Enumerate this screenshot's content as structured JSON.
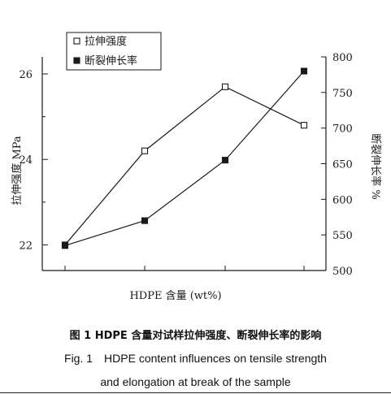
{
  "chart_data": {
    "type": "line",
    "xlabel": "HDPE 含量 (wt%)",
    "ylabel_left": "拉伸强度 MPa",
    "ylabel_right": "断裂伸长率 %",
    "y_left_ticks": [
      "22",
      "24",
      "26"
    ],
    "y_right_ticks": [
      "500",
      "550",
      "600",
      "650",
      "700",
      "750",
      "800"
    ],
    "y_left_range": [
      21.4,
      26.4
    ],
    "y_right_range": [
      500,
      800
    ],
    "x_tick_count": 4,
    "x": [
      0,
      1,
      2,
      3
    ],
    "series": [
      {
        "name": "拉伸强度",
        "axis": "left",
        "marker": "open-square",
        "values": [
          22.0,
          24.2,
          25.7,
          24.8
        ]
      },
      {
        "name": "断裂伸长率",
        "axis": "right",
        "marker": "filled-square",
        "values": [
          535,
          570,
          655,
          780
        ]
      }
    ],
    "legend_position": "top-left",
    "grid": false
  },
  "caption": {
    "cn": "图 1   HDPE 含量对试样拉伸强度、断裂伸长率的影响",
    "en_num": "Fig. 1",
    "en_line1": "HDPE content influences on tensile strength",
    "en_line2": "and elongation at break of the sample"
  },
  "colors": {
    "ink": "#1a1a1a"
  }
}
